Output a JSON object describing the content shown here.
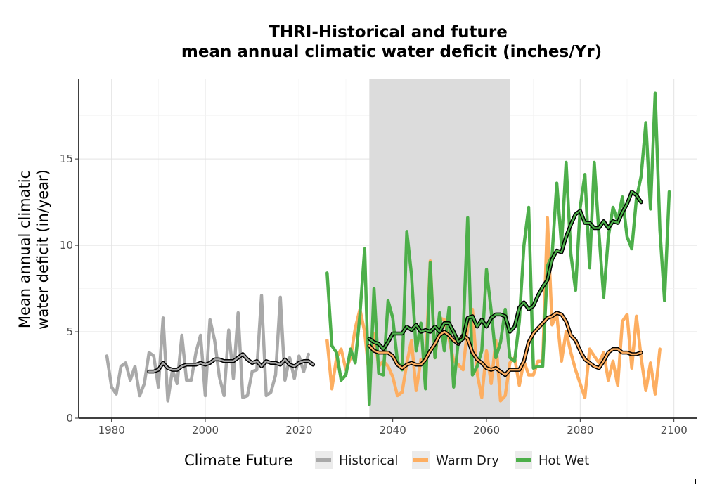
{
  "chart_data": {
    "type": "line",
    "title_line1": "THRI-Historical and future",
    "title_line2": "mean annual climatic water deficit (inches/Yr)",
    "ylabel_line1": "Mean annual climatic",
    "ylabel_line2": "water deficit (in/year)",
    "xlabel": "",
    "xlim": [
      1973,
      2105
    ],
    "ylim": [
      0,
      19.6
    ],
    "x_ticks": [
      1980,
      2000,
      2020,
      2040,
      2060,
      2080,
      2100
    ],
    "y_ticks": [
      0,
      5,
      10,
      15
    ],
    "grid": true,
    "reference_period": [
      2035,
      2065
    ],
    "reference_period_color": "#dcdcdc",
    "legend": {
      "title": "Climate Future",
      "position": "bottom",
      "entries": [
        "Historical",
        "Warm Dry",
        "Hot Wet"
      ]
    },
    "series": [
      {
        "name": "Historical",
        "color": "#a9a9a9",
        "x_start": 1979,
        "values": [
          3.6,
          1.8,
          1.4,
          3.0,
          3.2,
          2.2,
          3.0,
          1.3,
          2.0,
          3.8,
          3.6,
          1.8,
          5.8,
          1.0,
          2.8,
          2.0,
          4.8,
          2.2,
          2.2,
          3.8,
          4.8,
          1.3,
          5.7,
          4.5,
          2.4,
          1.3,
          5.1,
          2.3,
          6.1,
          1.2,
          1.3,
          2.7,
          2.8,
          7.1,
          1.3,
          1.5,
          2.5,
          7.0,
          2.2,
          3.5,
          2.3,
          3.6,
          2.7,
          3.7
        ],
        "smooth_x_start": 1988,
        "smooth": [
          2.7,
          2.7,
          2.8,
          3.2,
          2.9,
          2.8,
          2.8,
          3.0,
          3.1,
          3.1,
          3.1,
          3.2,
          3.1,
          3.2,
          3.4,
          3.4,
          3.3,
          3.3,
          3.3,
          3.5,
          3.7,
          3.4,
          3.2,
          3.3,
          3.0,
          3.3,
          3.2,
          3.2,
          3.1,
          3.4,
          3.1,
          3.0,
          3.2,
          3.3,
          3.3,
          3.1
        ]
      },
      {
        "name": "Warm Dry",
        "color": "#fdae61",
        "x_start": 2026,
        "values": [
          4.5,
          1.7,
          3.5,
          4.0,
          2.8,
          3.5,
          5.2,
          6.3,
          5.0,
          2.4,
          4.9,
          3.0,
          3.3,
          3.0,
          2.4,
          1.3,
          1.5,
          3.2,
          4.5,
          1.6,
          3.4,
          2.9,
          9.1,
          3.5,
          5.8,
          5.7,
          4.6,
          3.3,
          3.1,
          2.8,
          5.3,
          6.3,
          2.6,
          1.2,
          3.9,
          2.0,
          4.5,
          1.0,
          1.3,
          3.2,
          3.5,
          1.9,
          3.3,
          2.5,
          2.5,
          3.3,
          3.3,
          11.6,
          5.4,
          6.0,
          3.3,
          5.0,
          3.8,
          2.8,
          2.0,
          1.2,
          4.0,
          3.6,
          3.2,
          3.8,
          2.2,
          3.3,
          1.9,
          5.6,
          6.0,
          2.9,
          5.9,
          3.5,
          1.6,
          3.2,
          1.4,
          4.0
        ],
        "smooth_x_start": 2035,
        "smooth": [
          4.2,
          3.9,
          3.8,
          3.8,
          3.8,
          3.6,
          3.1,
          2.9,
          3.1,
          3.2,
          3.1,
          3.1,
          3.4,
          3.9,
          4.3,
          4.8,
          5.0,
          4.8,
          4.5,
          4.3,
          4.8,
          4.6,
          3.8,
          3.4,
          3.2,
          2.9,
          2.8,
          2.9,
          2.7,
          2.5,
          2.8,
          2.8,
          2.8,
          3.3,
          4.4,
          4.9,
          5.2,
          5.5,
          5.8,
          5.9,
          6.1,
          6.0,
          5.6,
          4.8,
          4.5,
          3.9,
          3.4,
          3.2,
          3.0,
          2.9,
          3.3,
          3.8,
          4.0,
          4.0,
          3.8,
          3.8,
          3.7,
          3.7,
          3.8
        ]
      },
      {
        "name": "Hot Wet",
        "color": "#4daf4a",
        "x_start": 2026,
        "values": [
          8.4,
          4.2,
          3.8,
          2.2,
          2.5,
          4.0,
          3.2,
          6.0,
          9.8,
          0.8,
          7.5,
          2.6,
          2.5,
          6.8,
          5.8,
          3.3,
          2.8,
          10.8,
          8.3,
          3.9,
          5.5,
          1.7,
          9.0,
          3.5,
          6.1,
          3.9,
          6.4,
          1.8,
          4.5,
          4.8,
          11.6,
          2.5,
          3.0,
          3.9,
          8.6,
          6.2,
          3.5,
          4.4,
          6.3,
          3.5,
          3.3,
          5.6,
          10.0,
          12.2,
          2.9,
          3.0,
          3.0,
          8.8,
          9.4,
          13.6,
          10.0,
          14.8,
          9.5,
          7.4,
          12.2,
          14.1,
          8.7,
          14.8,
          10.7,
          7.0,
          10.5,
          12.2,
          11.4,
          12.8,
          10.5,
          9.8,
          12.7,
          14.0,
          17.1,
          12.1,
          18.8,
          10.9,
          6.8,
          13.1
        ],
        "smooth_x_start": 2035,
        "smooth": [
          4.6,
          4.4,
          4.3,
          4.0,
          4.4,
          4.9,
          4.9,
          4.9,
          5.3,
          5.1,
          5.4,
          5.0,
          5.1,
          5.0,
          5.3,
          5.0,
          5.5,
          5.5,
          5.0,
          4.4,
          4.6,
          5.8,
          5.9,
          5.3,
          5.7,
          5.3,
          5.8,
          6.0,
          6.0,
          5.9,
          5.0,
          5.3,
          6.4,
          6.7,
          6.3,
          6.5,
          7.1,
          7.6,
          8.0,
          9.2,
          9.7,
          9.6,
          10.5,
          11.2,
          11.8,
          12.0,
          11.3,
          11.3,
          11.0,
          11.0,
          11.4,
          11.0,
          11.4,
          11.3,
          11.9,
          12.4,
          13.1,
          12.9,
          12.5
        ]
      }
    ]
  }
}
